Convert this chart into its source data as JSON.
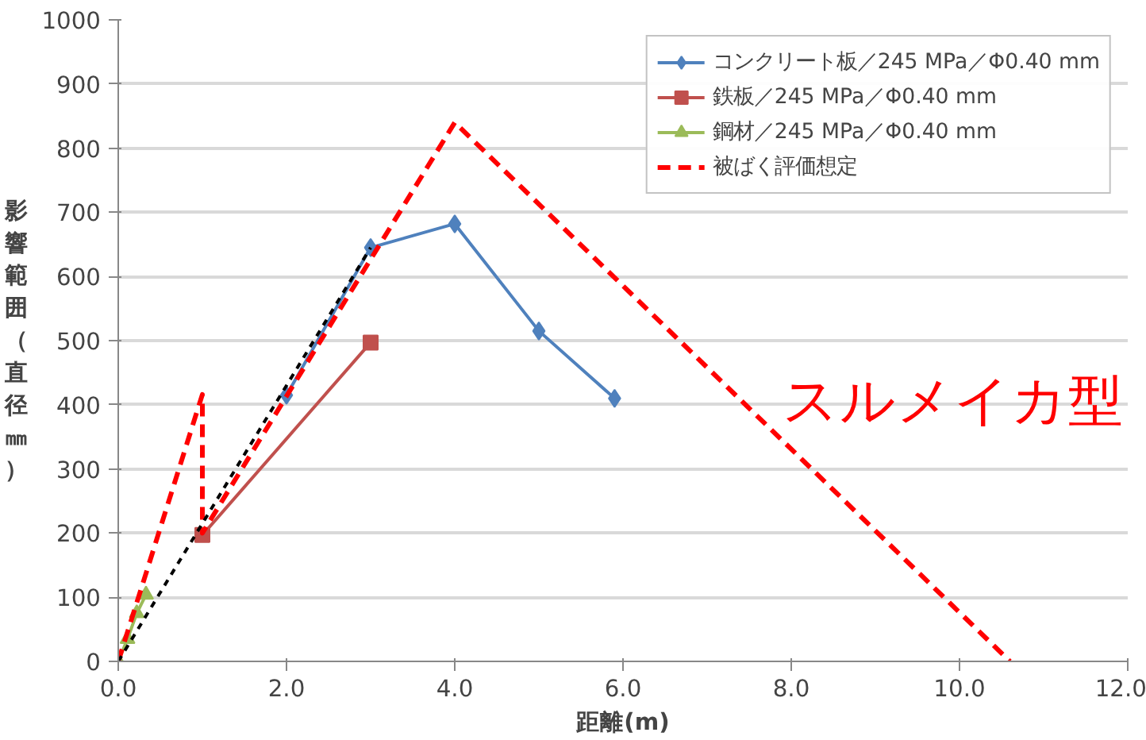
{
  "chart_data": {
    "type": "line",
    "xlabel": "距離(m)",
    "ylabel": "影響範囲（直径㎜）",
    "xlim": [
      0,
      12
    ],
    "ylim": [
      0,
      1000
    ],
    "xticks": [
      {
        "value": 0,
        "label": "0.0"
      },
      {
        "value": 2,
        "label": "2.0"
      },
      {
        "value": 4,
        "label": "4.0"
      },
      {
        "value": 6,
        "label": "6.0"
      },
      {
        "value": 8,
        "label": "8.0"
      },
      {
        "value": 10,
        "label": "10.0"
      },
      {
        "value": 12,
        "label": "12.0"
      }
    ],
    "yticks": [
      0,
      100,
      200,
      300,
      400,
      500,
      600,
      700,
      800,
      900,
      1000
    ],
    "grid": "y",
    "legend": "top right",
    "series": [
      {
        "name": "コンクリート板／245 MPa／Φ0.40 mm",
        "color": "#4f81bd",
        "marker": "diamond",
        "line_style": "solid",
        "x": [
          2,
          3,
          4,
          5,
          5.9
        ],
        "values": [
          415,
          645,
          682,
          515,
          410
        ]
      },
      {
        "name": "鉄板／245 MPa／Φ0.40 mm",
        "color": "#c0504d",
        "marker": "square",
        "line_style": "solid",
        "x": [
          1,
          3
        ],
        "values": [
          197,
          497
        ]
      },
      {
        "name": "鋼材／245 MPa／Φ0.40 mm",
        "color": "#9bbb59",
        "marker": "triangle",
        "line_style": "solid",
        "x": [
          0,
          0.11,
          0.22,
          0.33
        ],
        "values": [
          0,
          35,
          75,
          104
        ]
      },
      {
        "name": "被ばく評価想定",
        "color": "#ff0000",
        "marker": "none",
        "line_style": "dashed",
        "x": [
          0,
          1,
          1,
          4,
          10.6
        ],
        "values": [
          0,
          416,
          200,
          840,
          0
        ]
      },
      {
        "color": "#000000",
        "marker": "none",
        "line_style": "dotted",
        "x": [
          0,
          3
        ],
        "values": [
          0,
          645
        ]
      }
    ],
    "annotations": [
      {
        "text": "スルメイカ型",
        "x": 7.9,
        "y": 355
      }
    ]
  }
}
